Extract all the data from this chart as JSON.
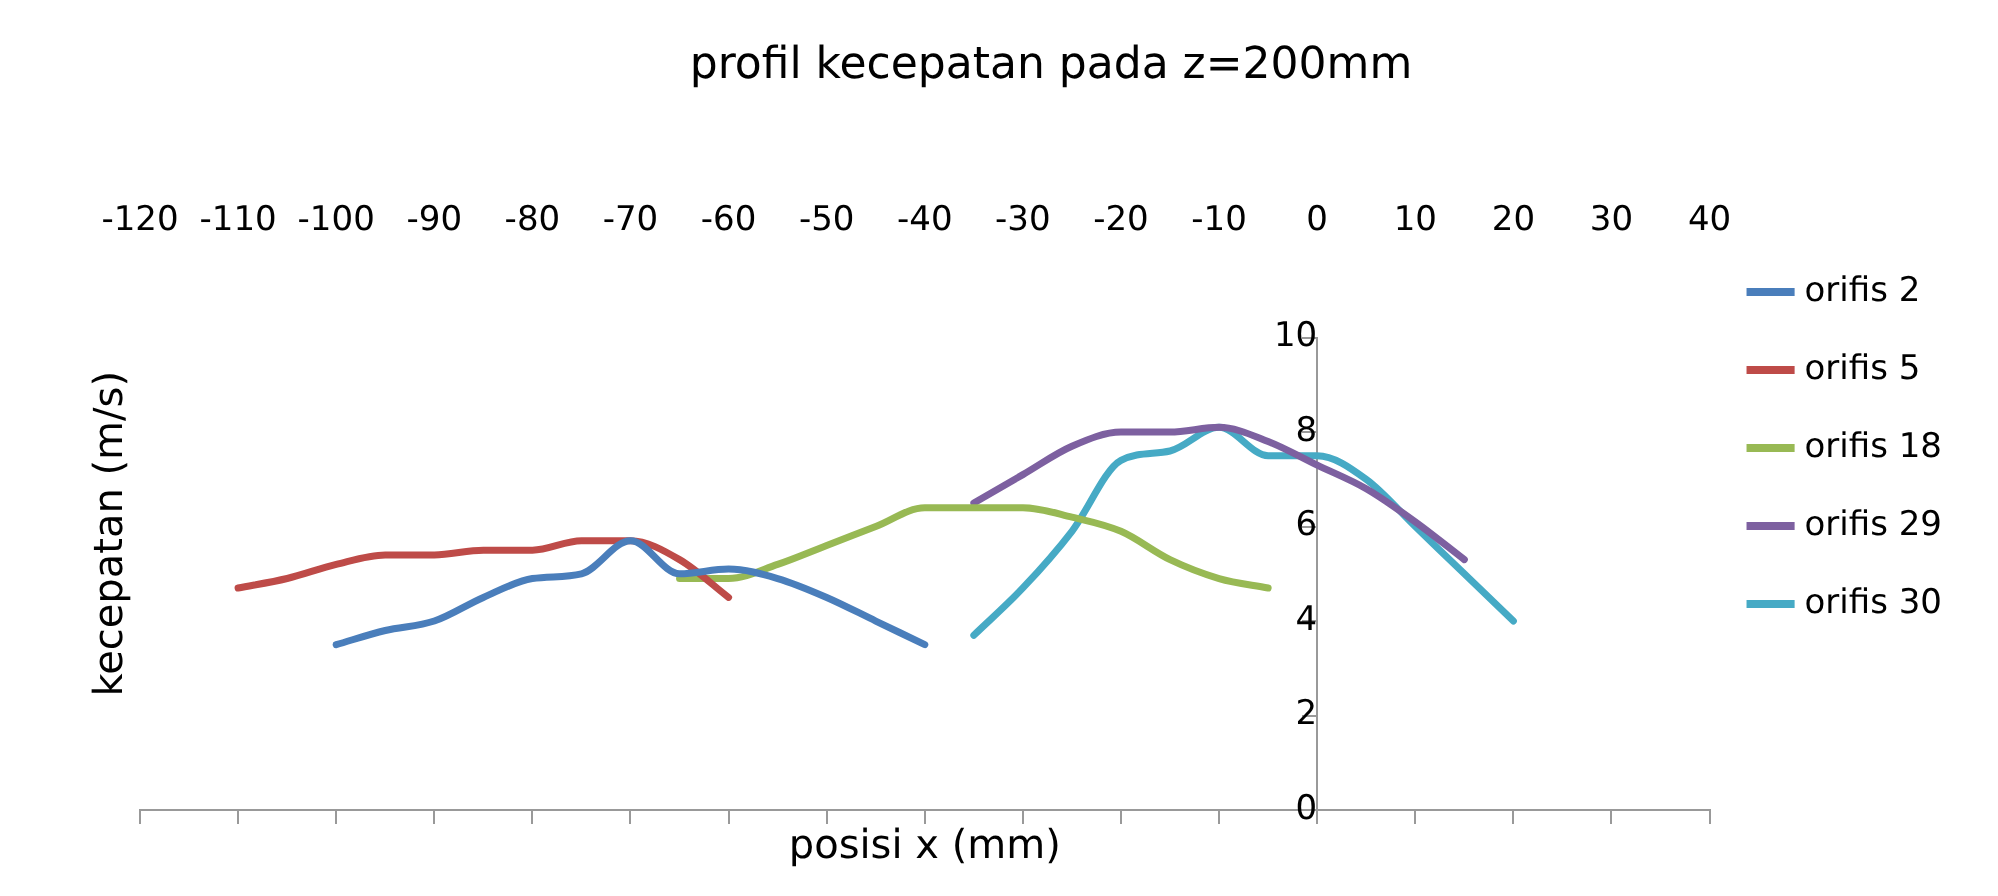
{
  "chart_data": {
    "type": "line",
    "title": "profil kecepatan pada z=200mm",
    "xlabel": "posisi x (mm)",
    "ylabel": "kecepatan (m/s)",
    "xlim": [
      -120,
      40
    ],
    "xticks": [
      -120,
      -110,
      -100,
      -90,
      -80,
      -70,
      -60,
      -50,
      -40,
      -30,
      -20,
      -10,
      0,
      10,
      20,
      30,
      40
    ],
    "ylim": [
      0,
      10
    ],
    "yticks": [
      0,
      2,
      4,
      6,
      8,
      10
    ],
    "grid": false,
    "legend": "right",
    "marker": "none",
    "line_style": "solid",
    "series": [
      {
        "name": "orifis 2",
        "color": "#4a7ebb",
        "x": [
          -100,
          -95,
          -90,
          -85,
          -80,
          -75,
          -70,
          -65,
          -60,
          -55,
          -50,
          -45,
          -40
        ],
        "values": [
          3.5,
          3.8,
          4.0,
          4.5,
          4.9,
          5.0,
          5.7,
          5.0,
          5.1,
          4.9,
          4.5,
          4.0,
          3.5
        ]
      },
      {
        "name": "orifis 5",
        "color": "#be4b48",
        "x": [
          -110,
          -105,
          -100,
          -95,
          -90,
          -85,
          -80,
          -75,
          -70,
          -65,
          -60
        ],
        "values": [
          4.7,
          4.9,
          5.2,
          5.4,
          5.4,
          5.5,
          5.5,
          5.7,
          5.7,
          5.3,
          4.5
        ]
      },
      {
        "name": "orifis 18",
        "color": "#98b954",
        "x": [
          -65,
          -60,
          -55,
          -50,
          -45,
          -40,
          -35,
          -30,
          -25,
          -20,
          -15,
          -10,
          -5
        ],
        "values": [
          4.9,
          4.9,
          5.2,
          5.6,
          6.0,
          6.4,
          6.4,
          6.4,
          6.2,
          5.9,
          5.3,
          4.9,
          4.7
        ]
      },
      {
        "name": "orifis 29",
        "color": "#7d60a0",
        "x": [
          -35,
          -30,
          -25,
          -20,
          -15,
          -10,
          -5,
          0,
          5,
          10,
          15
        ],
        "values": [
          6.5,
          7.1,
          7.7,
          8.0,
          8.0,
          8.1,
          7.8,
          7.3,
          6.8,
          6.1,
          5.3
        ]
      },
      {
        "name": "orifis 30",
        "color": "#46aac5",
        "x": [
          -35,
          -30,
          -25,
          -20,
          -15,
          -10,
          -5,
          0,
          5,
          10,
          15,
          20
        ],
        "values": [
          3.7,
          4.7,
          5.9,
          7.4,
          7.6,
          8.1,
          7.5,
          7.5,
          7.0,
          6.0,
          5.0,
          4.0
        ]
      }
    ]
  }
}
